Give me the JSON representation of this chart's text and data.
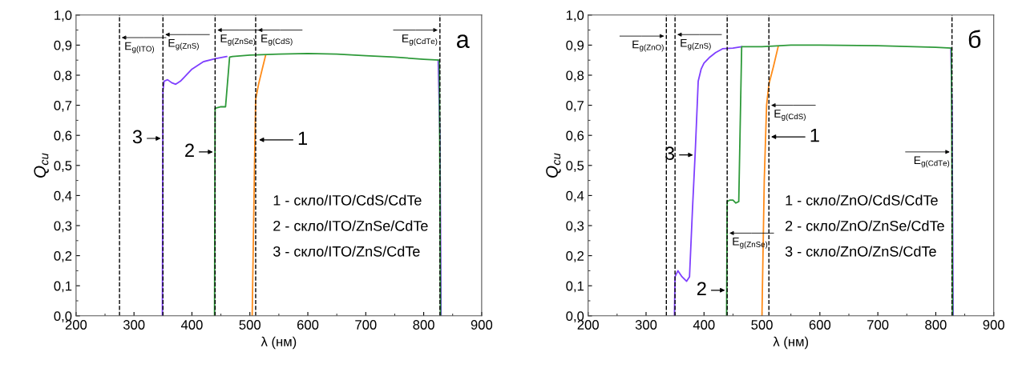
{
  "chart_data": [
    {
      "type": "line",
      "title": "а",
      "xlabel": "λ (нм)",
      "ylabel": "Q$_{cu}$",
      "xlim": [
        200,
        900
      ],
      "xticks": [
        200,
        300,
        400,
        500,
        600,
        700,
        800,
        900
      ],
      "ylim": [
        0,
        1.0
      ],
      "yticks": [
        {
          "value": 0,
          "label": "0,0"
        },
        {
          "value": 0.1,
          "label": "0,1"
        },
        {
          "value": 0.2,
          "label": "0,2"
        },
        {
          "value": 0.3,
          "label": "0,3"
        },
        {
          "value": 0.4,
          "label": "0,4"
        },
        {
          "value": 0.5,
          "label": "0,5"
        },
        {
          "value": 0.6,
          "label": "0,6"
        },
        {
          "value": 0.7,
          "label": "0,7"
        },
        {
          "value": 0.8,
          "label": "0,8"
        },
        {
          "value": 0.9,
          "label": "0,9"
        },
        {
          "value": 1.0,
          "label": "1,0"
        }
      ],
      "grid": false,
      "legend": false,
      "line_style": "solid",
      "marker": "none",
      "series": [
        {
          "color": "#7f3fff",
          "x": [
            349,
            350,
            352,
            358,
            365,
            372,
            380,
            385,
            400,
            420,
            440,
            460,
            500,
            550,
            600,
            650,
            700,
            750,
            800,
            825,
            828,
            830
          ],
          "values": [
            0,
            0.75,
            0.78,
            0.785,
            0.775,
            0.77,
            0.78,
            0.79,
            0.82,
            0.845,
            0.855,
            0.862,
            null,
            null,
            null,
            null,
            null,
            null,
            null,
            0.85,
            0.6,
            0
          ]
        },
        {
          "color": "#ff8c1a",
          "x": [
            504,
            508,
            510,
            515,
            520,
            527
          ],
          "values": [
            0,
            0.5,
            0.72,
            0.77,
            0.81,
            0.865
          ]
        },
        {
          "color": "#2e9a3a",
          "x": [
            439,
            440,
            450,
            458,
            465,
            470,
            500,
            550,
            600,
            650,
            700,
            750,
            800,
            827,
            829
          ],
          "values": [
            0,
            0.69,
            0.695,
            0.695,
            0.86,
            0.862,
            0.867,
            0.87,
            0.872,
            0.87,
            0.865,
            0.86,
            0.853,
            0.85,
            0
          ]
        }
      ],
      "ref_lines": [
        {
          "axis": "x",
          "value": 275,
          "color": "#000000",
          "line_style": "dashed"
        },
        {
          "axis": "x",
          "value": 350,
          "color": "#000000",
          "line_style": "dashed"
        },
        {
          "axis": "x",
          "value": 440,
          "color": "#000000",
          "line_style": "dashed"
        },
        {
          "axis": "x",
          "value": 510,
          "color": "#000000",
          "line_style": "dashed"
        },
        {
          "axis": "x",
          "value": 828,
          "color": "#000000",
          "line_style": "dashed"
        }
      ],
      "annotations": [
        {
          "text": "E$_{g(ITO)}$",
          "x": 275,
          "y": 0.925
        },
        {
          "text": "E$_{g(ZnS)}$",
          "x": 350,
          "y": 0.935
        },
        {
          "text": "E$_{g(ZnSe)}$",
          "x": 440,
          "y": 0.95
        },
        {
          "text": "E$_{g(CdS)}$",
          "x": 510,
          "y": 0.95
        },
        {
          "text": "E$_{g(CdTe)}$",
          "x": 828,
          "y": 0.95
        },
        {
          "text": "3",
          "x": 350,
          "y": 0.59
        },
        {
          "text": "2",
          "x": 440,
          "y": 0.545
        },
        {
          "text": "1",
          "x": 512,
          "y": 0.585
        },
        "1 - скло/ITO/CdS/CdTe",
        "2 - скло/ITO/ZnSe/CdTe",
        "3 - скло/ITO/ZnS/CdTe"
      ]
    },
    {
      "type": "line",
      "title": "б",
      "xlabel": "λ (нм)",
      "ylabel": "Q$_{cu}$",
      "xlim": [
        200,
        900
      ],
      "xticks": [
        200,
        300,
        400,
        500,
        600,
        700,
        800,
        900
      ],
      "ylim": [
        0,
        1.0
      ],
      "yticks": [
        {
          "value": 0,
          "label": "0,0"
        },
        {
          "value": 0.1,
          "label": "0,1"
        },
        {
          "value": 0.2,
          "label": "0,2"
        },
        {
          "value": 0.3,
          "label": "0,3"
        },
        {
          "value": 0.4,
          "label": "0,4"
        },
        {
          "value": 0.5,
          "label": "0,5"
        },
        {
          "value": 0.6,
          "label": "0,6"
        },
        {
          "value": 0.7,
          "label": "0,7"
        },
        {
          "value": 0.8,
          "label": "0,8"
        },
        {
          "value": 0.9,
          "label": "0,9"
        },
        {
          "value": 1.0,
          "label": "1,0"
        }
      ],
      "grid": false,
      "legend": false,
      "line_style": "solid",
      "marker": "none",
      "series": [
        {
          "color": "#7f3fff",
          "x": [
            349,
            350,
            355,
            362,
            370,
            375,
            380,
            385,
            390,
            395,
            400,
            410,
            420,
            432,
            450,
            465,
            500,
            550,
            600,
            700,
            800,
            826,
            828,
            830
          ],
          "values": [
            0,
            0.13,
            0.15,
            0.13,
            0.115,
            0.13,
            0.35,
            0.55,
            0.78,
            0.82,
            0.84,
            0.86,
            0.875,
            0.888,
            0.89,
            0.895,
            null,
            null,
            null,
            null,
            null,
            0.89,
            0.7,
            0
          ]
        },
        {
          "color": "#ff8c1a",
          "x": [
            500,
            504,
            508,
            512,
            520,
            528
          ],
          "values": [
            0,
            0.45,
            0.7,
            0.77,
            0.83,
            0.895
          ]
        },
        {
          "color": "#2e9a3a",
          "x": [
            439,
            440,
            445,
            450,
            455,
            460,
            465,
            500,
            550,
            600,
            700,
            800,
            827,
            829
          ],
          "values": [
            0,
            0.38,
            0.385,
            0.385,
            0.375,
            0.38,
            0.895,
            0.895,
            0.9,
            0.9,
            0.898,
            0.893,
            0.89,
            0
          ]
        }
      ],
      "ref_lines": [
        {
          "axis": "x",
          "value": 335,
          "color": "#000000",
          "line_style": "dashed"
        },
        {
          "axis": "x",
          "value": 350,
          "color": "#000000",
          "line_style": "dashed"
        },
        {
          "axis": "x",
          "value": 440,
          "color": "#000000",
          "line_style": "dashed"
        },
        {
          "axis": "x",
          "value": 512,
          "color": "#000000",
          "line_style": "dashed"
        },
        {
          "axis": "x",
          "value": 828,
          "color": "#000000",
          "line_style": "dashed"
        }
      ],
      "annotations": [
        {
          "text": "E$_{g(ZnO)}$",
          "x": 335,
          "y": 0.93
        },
        {
          "text": "E$_{g(ZnS)}$",
          "x": 350,
          "y": 0.935
        },
        {
          "text": "E$_{g(CdS)}$",
          "x": 512,
          "y": 0.7
        },
        {
          "text": "E$_{g(ZnSe)}$",
          "x": 440,
          "y": 0.275
        },
        {
          "text": "E$_{g(CdTe)}$",
          "x": 828,
          "y": 0.545
        },
        {
          "text": "3",
          "x": 385,
          "y": 0.535
        },
        {
          "text": "2",
          "x": 440,
          "y": 0.085
        },
        {
          "text": "1",
          "x": 512,
          "y": 0.595
        },
        "1 - скло/ZnO/CdS/CdTe",
        "2 - скло/ZnO/ZnSe/CdTe",
        "3 - скло/ZnO/ZnS/CdTe"
      ]
    }
  ]
}
